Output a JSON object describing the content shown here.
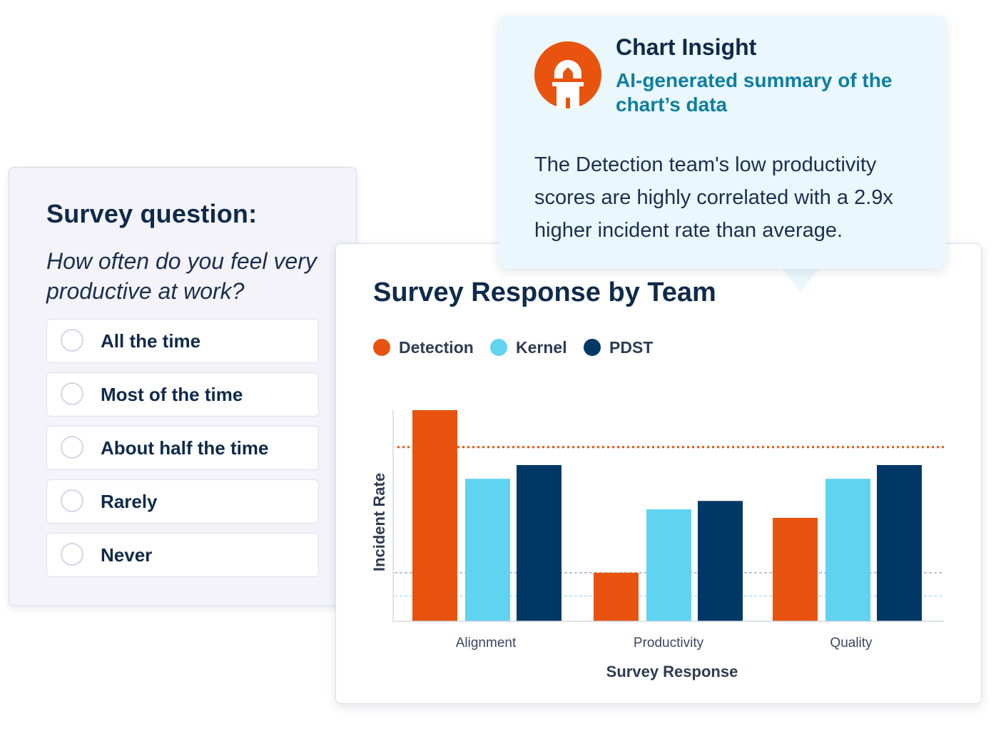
{
  "survey": {
    "title": "Survey question:",
    "prompt": "How often do you feel very productive at work?",
    "options": [
      "All the time",
      "Most of the time",
      "About half the time",
      "Rarely",
      "Never"
    ]
  },
  "insight": {
    "title": "Chart Insight",
    "subtitle": "AI-generated summary of the chart’s data",
    "body": "The Detection team's low productivity scores are highly correlated with a 2.9x higher incident rate than average.",
    "logo_icon": "lighthouse-icon",
    "colors": {
      "background": "#eaf7fd",
      "accent": "#e8530f",
      "subtitle": "#0e7fa1"
    }
  },
  "chart_data": {
    "type": "bar",
    "title": "Survey Response by Team",
    "xlabel": "Survey Response",
    "ylabel": "Incident Rate",
    "categories": [
      "Alignment",
      "Productivity",
      "Quality"
    ],
    "series": [
      {
        "name": "Detection",
        "color": "#e8530f",
        "values": [
          100,
          23,
          49
        ]
      },
      {
        "name": "Kernel",
        "color": "#5fd3f0",
        "values": [
          67.5,
          53,
          67.5
        ]
      },
      {
        "name": "PDST",
        "color": "#003865",
        "values": [
          74,
          57,
          74
        ]
      }
    ],
    "ylim": [
      0,
      100
    ],
    "reference_lines": [
      {
        "value": 82.5,
        "color": "#e8530f",
        "style": "dotted"
      },
      {
        "value": 23,
        "color": "#9fb2c8",
        "style": "dashed"
      },
      {
        "value": 12,
        "color": "#a8dff0",
        "style": "dashed"
      }
    ],
    "legend_position": "top-left",
    "grid": false
  }
}
